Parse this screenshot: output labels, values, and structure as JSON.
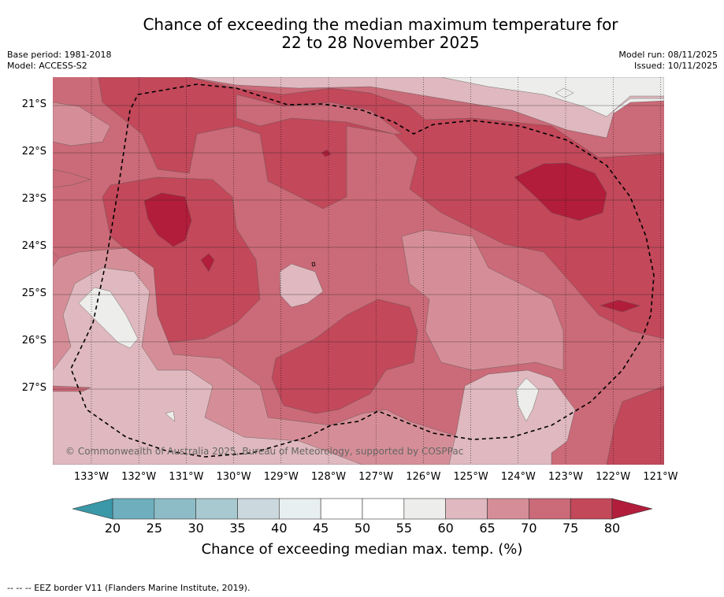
{
  "title": {
    "line1": "Chance of exceeding the median maximum temperature for",
    "line2": "22 to 28 November 2025"
  },
  "meta": {
    "base_period": "Base period: 1981-2018",
    "model": "Model: ACCESS-S2",
    "model_run": "Model run: 08/11/2025",
    "issued": "Issued: 10/11/2025"
  },
  "map": {
    "lat_labels": [
      "21°S",
      "22°S",
      "23°S",
      "24°S",
      "25°S",
      "26°S",
      "27°S"
    ],
    "lon_labels": [
      "133°W",
      "132°W",
      "131°W",
      "130°W",
      "129°W",
      "128°W",
      "127°W",
      "126°W",
      "125°W",
      "124°W",
      "123°W",
      "122°W",
      "121°W"
    ],
    "copyright": "© Commonwealth of Australia 2025, Bureau of Meteorology, supported by COSPPac",
    "palette": {
      "lt20": "#3b98a8",
      "b20_25": "#6eaebd",
      "b25_30": "#8dbcc6",
      "b30_35": "#a8c9cf",
      "b35_40": "#cbd8dd",
      "b40_45": "#e8eff1",
      "b45_55": "#ffffff",
      "b55_60": "#ededeb",
      "b60_65": "#dfb9bf",
      "b65_70": "#d58e97",
      "b70_75": "#cb6a78",
      "b75_80": "#c2485a",
      "gt80": "#b11d3b"
    }
  },
  "colorbar": {
    "ticks": [
      "20",
      "25",
      "30",
      "35",
      "40",
      "45",
      "50",
      "55",
      "60",
      "65",
      "70",
      "75",
      "80"
    ],
    "label": "Chance of exceeding median max. temp. (%)"
  },
  "footnote": "--  --  -- EEZ border V11 (Flanders Marine Institute, 2019)."
}
